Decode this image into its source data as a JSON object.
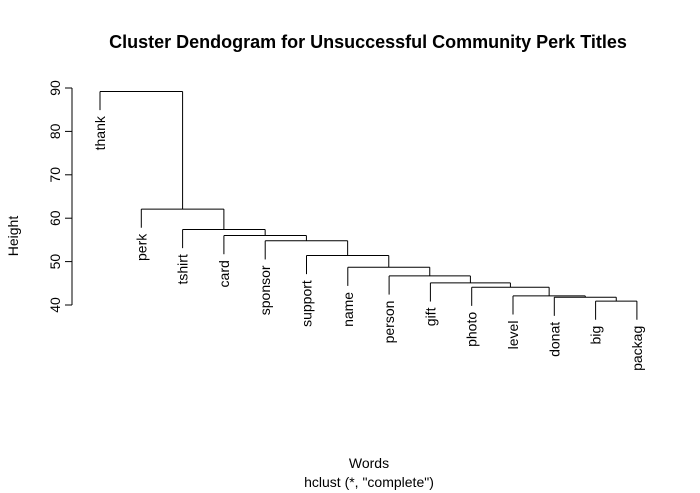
{
  "chart_data": {
    "type": "dendrogram",
    "title": "Cluster Dendogram for Unsuccessful Community Perk Titles",
    "xlabel": "Words",
    "sublabel": "hclust (*, \"complete\")",
    "ylabel": "Height",
    "ylim": [
      40,
      90
    ],
    "yticks": [
      40,
      50,
      60,
      70,
      80,
      90
    ],
    "leaves": [
      "thank",
      "perk",
      "tshirt",
      "card",
      "sponsor",
      "support",
      "name",
      "person",
      "gift",
      "photo",
      "level",
      "donat",
      "big",
      "packag"
    ],
    "merges": [
      {
        "children": [
          "big",
          "packag"
        ],
        "height": 40.9
      },
      {
        "children": [
          "donat",
          "big+packag"
        ],
        "height": 41.8
      },
      {
        "children": [
          "level",
          "donat+big+packag"
        ],
        "height": 42.1
      },
      {
        "children": [
          "photo",
          "level..packag"
        ],
        "height": 44.1
      },
      {
        "children": [
          "gift",
          "photo..packag"
        ],
        "height": 45.1
      },
      {
        "children": [
          "person",
          "gift..packag"
        ],
        "height": 46.7
      },
      {
        "children": [
          "name",
          "person..packag"
        ],
        "height": 48.7
      },
      {
        "children": [
          "support",
          "name..packag"
        ],
        "height": 51.4
      },
      {
        "children": [
          "sponsor",
          "support..packag"
        ],
        "height": 54.8
      },
      {
        "children": [
          "card",
          "sponsor..packag"
        ],
        "height": 56.0
      },
      {
        "children": [
          "tshirt",
          "card..packag"
        ],
        "height": 57.4
      },
      {
        "children": [
          "perk",
          "tshirt..packag"
        ],
        "height": 62.1
      },
      {
        "children": [
          "thank",
          "perk..packag"
        ],
        "height": 89.2
      }
    ]
  }
}
